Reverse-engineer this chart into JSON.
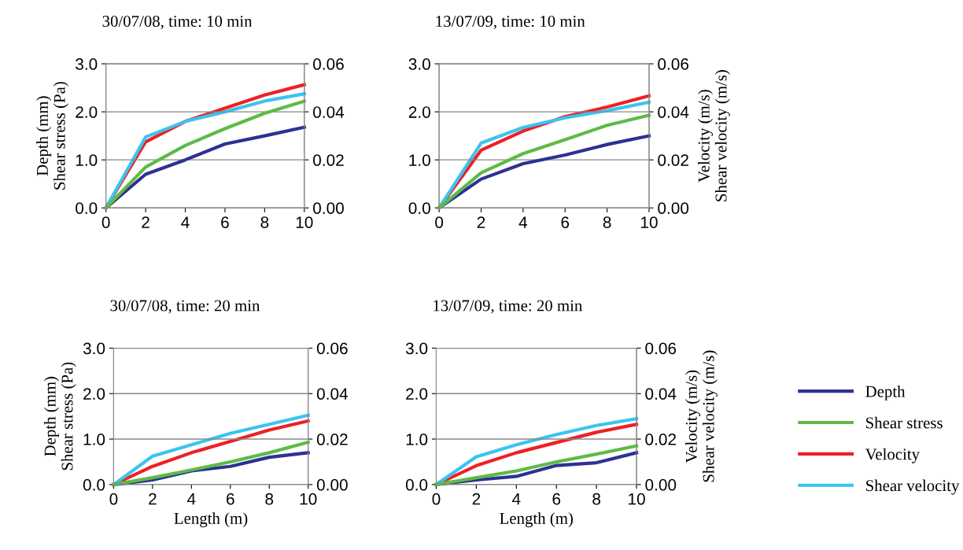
{
  "chart_data": [
    {
      "type": "line",
      "title": "30/07/08, time: 10 min",
      "ylabel": "Depth (mm)\nShear stress (Pa)",
      "x": [
        0,
        2,
        4,
        6,
        8,
        10
      ],
      "xlim": [
        0,
        10
      ],
      "xticks": [
        0,
        2,
        4,
        6,
        8,
        10
      ],
      "ylim": [
        0,
        3
      ],
      "yticks": [
        {
          "value": 0,
          "label": "0.0"
        },
        {
          "value": 1,
          "label": "1.0"
        },
        {
          "value": 2,
          "label": "2.0"
        },
        {
          "value": 3,
          "label": "3.0"
        }
      ],
      "y2lim": [
        0,
        0.06
      ],
      "y2ticks": [
        {
          "value": 0,
          "label": "0.00"
        },
        {
          "value": 0.02,
          "label": "0.02"
        },
        {
          "value": 0.04,
          "label": "0.04"
        },
        {
          "value": 0.06,
          "label": "0.06"
        }
      ],
      "grid": "y",
      "marker": "none",
      "line_style": "solid",
      "legend": "right",
      "series": [
        {
          "name": "Depth",
          "color": "#2e3192",
          "values": [
            0,
            0.7,
            1.0,
            1.33,
            1.5,
            1.68
          ]
        },
        {
          "name": "Shear stress",
          "color": "#5dbb46",
          "values": [
            0,
            0.85,
            1.3,
            1.65,
            1.97,
            2.22
          ]
        },
        {
          "name": "Velocity",
          "color": "#ed2024",
          "axis": "y2",
          "values": [
            0,
            0.0275,
            0.036,
            0.0415,
            0.047,
            0.0513
          ]
        },
        {
          "name": "Shear velocity",
          "color": "#3bc4f0",
          "axis": "y2",
          "values": [
            0,
            0.0295,
            0.036,
            0.04,
            0.0445,
            0.0475
          ]
        }
      ]
    },
    {
      "type": "line",
      "title": "13/07/09, time: 10 min",
      "y2label": "Velocity (m/s)\nShear velocity (m/s)",
      "x": [
        0,
        2,
        4,
        6,
        8,
        10
      ],
      "xlim": [
        0,
        10
      ],
      "xticks": [
        0,
        2,
        4,
        6,
        8,
        10
      ],
      "ylim": [
        0,
        3
      ],
      "yticks": [
        {
          "value": 0,
          "label": "0.0"
        },
        {
          "value": 1,
          "label": "1.0"
        },
        {
          "value": 2,
          "label": "2.0"
        },
        {
          "value": 3,
          "label": "3.0"
        }
      ],
      "y2lim": [
        0,
        0.06
      ],
      "y2ticks": [
        {
          "value": 0,
          "label": "0.00"
        },
        {
          "value": 0.02,
          "label": "0.02"
        },
        {
          "value": 0.04,
          "label": "0.04"
        },
        {
          "value": 0.06,
          "label": "0.06"
        }
      ],
      "grid": "y",
      "marker": "none",
      "line_style": "solid",
      "series": [
        {
          "color": "#2e3192",
          "values": [
            0,
            0.6,
            0.92,
            1.1,
            1.32,
            1.5
          ]
        },
        {
          "color": "#5dbb46",
          "values": [
            0,
            0.73,
            1.13,
            1.42,
            1.72,
            1.93
          ]
        },
        {
          "color": "#ed2024",
          "axis": "y2",
          "values": [
            0,
            0.024,
            0.032,
            0.038,
            0.042,
            0.0467
          ]
        },
        {
          "color": "#3bc4f0",
          "axis": "y2",
          "values": [
            0,
            0.027,
            0.0335,
            0.0375,
            0.0405,
            0.044
          ]
        }
      ]
    },
    {
      "type": "line",
      "title": "30/07/08, time: 20 min",
      "xlabel": "Length (m)",
      "ylabel": "Depth (mm)\nShear stress (Pa)",
      "x": [
        0,
        2,
        4,
        6,
        8,
        10
      ],
      "xlim": [
        0,
        10
      ],
      "xticks": [
        0,
        2,
        4,
        6,
        8,
        10
      ],
      "ylim": [
        0,
        3
      ],
      "yticks": [
        {
          "value": 0,
          "label": "0.0"
        },
        {
          "value": 1,
          "label": "1.0"
        },
        {
          "value": 2,
          "label": "2.0"
        },
        {
          "value": 3,
          "label": "3.0"
        }
      ],
      "y2lim": [
        0,
        0.06
      ],
      "y2ticks": [
        {
          "value": 0,
          "label": "0.00"
        },
        {
          "value": 0.02,
          "label": "0.02"
        },
        {
          "value": 0.04,
          "label": "0.04"
        },
        {
          "value": 0.06,
          "label": "0.06"
        }
      ],
      "grid": "y",
      "marker": "none",
      "line_style": "solid",
      "series": [
        {
          "color": "#2e3192",
          "values": [
            0,
            0.1,
            0.3,
            0.4,
            0.6,
            0.7
          ]
        },
        {
          "color": "#5dbb46",
          "values": [
            0,
            0.15,
            0.32,
            0.5,
            0.7,
            0.93
          ]
        },
        {
          "color": "#ed2024",
          "axis": "y2",
          "values": [
            0,
            0.008,
            0.014,
            0.019,
            0.024,
            0.028
          ]
        },
        {
          "color": "#3bc4f0",
          "axis": "y2",
          "values": [
            0,
            0.0125,
            0.0175,
            0.0225,
            0.0265,
            0.0305
          ]
        }
      ]
    },
    {
      "type": "line",
      "title": "13/07/09, time: 20 min",
      "xlabel": "Length (m)",
      "y2label": "Velocity (m/s)\nShear velocity (m/s)",
      "x": [
        0,
        2,
        4,
        6,
        8,
        10
      ],
      "xlim": [
        0,
        10
      ],
      "xticks": [
        0,
        2,
        4,
        6,
        8,
        10
      ],
      "ylim": [
        0,
        3
      ],
      "yticks": [
        {
          "value": 0,
          "label": "0.0"
        },
        {
          "value": 1,
          "label": "1.0"
        },
        {
          "value": 2,
          "label": "2.0"
        },
        {
          "value": 3,
          "label": "3.0"
        }
      ],
      "y2lim": [
        0,
        0.06
      ],
      "y2ticks": [
        {
          "value": 0,
          "label": "0.00"
        },
        {
          "value": 0.02,
          "label": "0.02"
        },
        {
          "value": 0.04,
          "label": "0.04"
        },
        {
          "value": 0.06,
          "label": "0.06"
        }
      ],
      "grid": "y",
      "marker": "none",
      "line_style": "solid",
      "series": [
        {
          "color": "#2e3192",
          "values": [
            0,
            0.1,
            0.18,
            0.42,
            0.48,
            0.7
          ]
        },
        {
          "color": "#5dbb46",
          "values": [
            0,
            0.15,
            0.3,
            0.5,
            0.67,
            0.85
          ]
        },
        {
          "color": "#ed2024",
          "axis": "y2",
          "values": [
            0,
            0.0083,
            0.014,
            0.0185,
            0.023,
            0.0265
          ]
        },
        {
          "color": "#3bc4f0",
          "axis": "y2",
          "values": [
            0,
            0.0122,
            0.0175,
            0.022,
            0.026,
            0.029
          ]
        }
      ]
    }
  ]
}
